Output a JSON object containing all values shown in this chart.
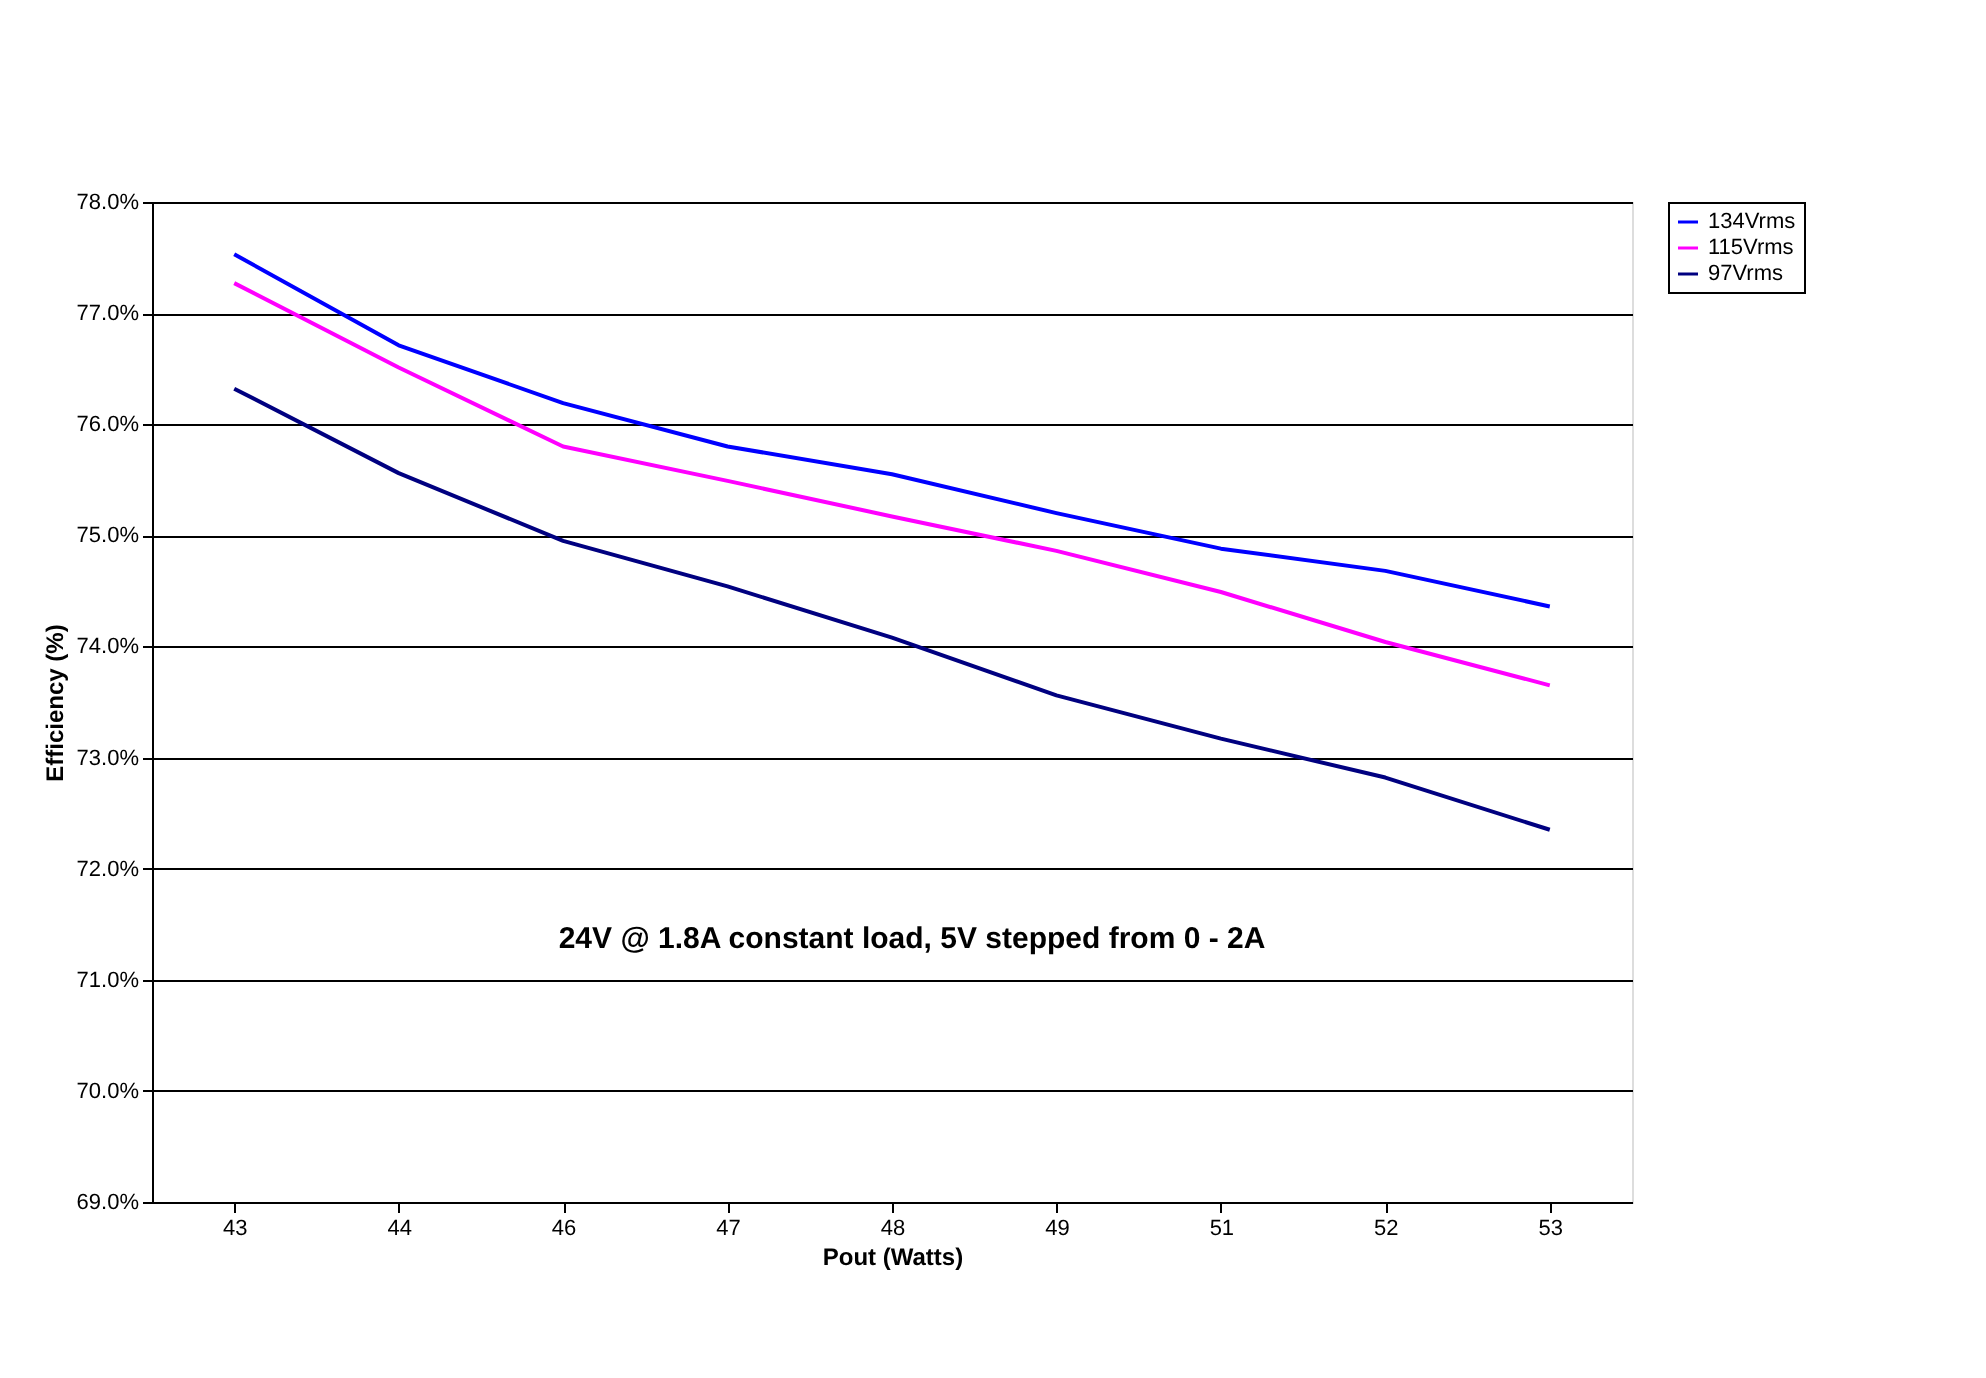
{
  "chart_data": {
    "type": "line",
    "xlabel": "Pout (Watts)",
    "ylabel": "Efficiency (%)",
    "categories": [
      "43",
      "44",
      "46",
      "47",
      "48",
      "49",
      "51",
      "52",
      "53"
    ],
    "series": [
      {
        "name": "134Vrms",
        "color": "#0000ff",
        "values": [
          77.53,
          76.71,
          76.19,
          75.8,
          75.55,
          75.2,
          74.88,
          74.68,
          74.36
        ]
      },
      {
        "name": "115Vrms",
        "color": "#ff00ff",
        "values": [
          77.27,
          76.51,
          75.8,
          75.49,
          75.17,
          74.86,
          74.49,
          74.04,
          73.65
        ]
      },
      {
        "name": "97Vrms",
        "color": "#000080",
        "values": [
          76.32,
          75.56,
          74.95,
          74.54,
          74.08,
          73.56,
          73.17,
          72.82,
          72.35
        ]
      }
    ],
    "ylim": [
      69,
      78
    ],
    "yticks": [
      {
        "value": 69,
        "label": "69.0%"
      },
      {
        "value": 70,
        "label": "70.0%"
      },
      {
        "value": 71,
        "label": "71.0%"
      },
      {
        "value": 72,
        "label": "72.0%"
      },
      {
        "value": 73,
        "label": "73.0%"
      },
      {
        "value": 74,
        "label": "74.0%"
      },
      {
        "value": 75,
        "label": "75.0%"
      },
      {
        "value": 76,
        "label": "76.0%"
      },
      {
        "value": 77,
        "label": "77.0%"
      },
      {
        "value": 78,
        "label": "78.0%"
      }
    ],
    "annotations": [
      "24V @ 1.8A constant load, 5V stepped from 0 - 2A"
    ],
    "grid": "y",
    "legend": "right",
    "marker": "none",
    "line_style": "solid"
  }
}
